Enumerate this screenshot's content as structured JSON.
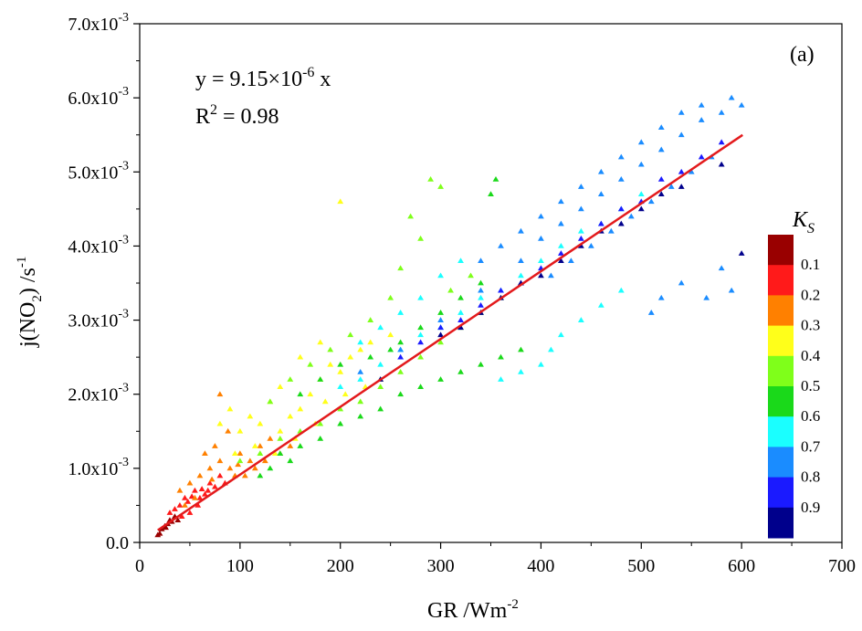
{
  "chart_data": {
    "type": "scatter",
    "panel_label": "(a)",
    "xlabel": "GR /Wm",
    "xlabel_sup": "-2",
    "ylabel": {
      "main": "j(NO",
      "sub": "2",
      "after": ") /s",
      "sup": "-1"
    },
    "xlim": [
      0,
      700
    ],
    "ylim": [
      0,
      0.007
    ],
    "xticks": [
      "0",
      "100",
      "200",
      "300",
      "400",
      "500",
      "600",
      "700"
    ],
    "yticks": [
      {
        "mant": "0.0",
        "exp": ""
      },
      {
        "mant": "1.0x10",
        "exp": "-3"
      },
      {
        "mant": "2.0x10",
        "exp": "-3"
      },
      {
        "mant": "3.0x10",
        "exp": "-3"
      },
      {
        "mant": "4.0x10",
        "exp": "-3"
      },
      {
        "mant": "5.0x10",
        "exp": "-3"
      },
      {
        "mant": "6.0x10",
        "exp": "-3"
      },
      {
        "mant": "7.0x10",
        "exp": "-3"
      }
    ],
    "equation": {
      "lhs": "y = 9.15×10",
      "exp": "-6",
      "rhs": " x"
    },
    "r2": {
      "lhs": "R",
      "exp": "2",
      "rhs": " = 0.98"
    },
    "fit": {
      "slope": 9.15e-06,
      "x_range": [
        18,
        601
      ],
      "color": "#e31a1c"
    },
    "marker": "triangle",
    "colorbar": {
      "title": "K",
      "title_sub": "S",
      "labels": [
        "0.1",
        "0.2",
        "0.3",
        "0.4",
        "0.5",
        "0.6",
        "0.7",
        "0.8",
        "0.9"
      ],
      "colors": [
        "#990000",
        "#ff1a1a",
        "#ff8000",
        "#ffff1a",
        "#7fff1a",
        "#1ad91a",
        "#1affff",
        "#1a8cff",
        "#1a1aff",
        "#00008c"
      ]
    },
    "series_groups": [
      {
        "ks_band": "0.0-0.1",
        "color": "#990000",
        "points": [
          [
            18,
            0.0001
          ],
          [
            22,
            0.00018
          ],
          [
            25,
            0.00022
          ],
          [
            28,
            0.00025
          ],
          [
            30,
            0.0003
          ],
          [
            32,
            0.00028
          ],
          [
            35,
            0.00035
          ],
          [
            38,
            0.0003
          ],
          [
            20,
            0.00012
          ],
          [
            26,
            0.0002
          ]
        ]
      },
      {
        "ks_band": "0.1-0.2",
        "color": "#ff1a1a",
        "points": [
          [
            35,
            0.00045
          ],
          [
            40,
            0.0005
          ],
          [
            45,
            0.0006
          ],
          [
            50,
            0.0004
          ],
          [
            55,
            0.0007
          ],
          [
            60,
            0.0006
          ],
          [
            65,
            0.00065
          ],
          [
            70,
            0.0008
          ],
          [
            75,
            0.00075
          ],
          [
            80,
            0.0009
          ],
          [
            42,
            0.00035
          ],
          [
            48,
            0.00055
          ],
          [
            58,
            0.0005
          ],
          [
            68,
            0.0007
          ],
          [
            85,
            0.0008
          ],
          [
            30,
            0.0004
          ],
          [
            52,
            0.00062
          ],
          [
            62,
            0.00072
          ]
        ]
      },
      {
        "ks_band": "0.2-0.3",
        "color": "#ff8000",
        "points": [
          [
            40,
            0.0007
          ],
          [
            50,
            0.0008
          ],
          [
            60,
            0.0009
          ],
          [
            70,
            0.001
          ],
          [
            80,
            0.0011
          ],
          [
            90,
            0.001
          ],
          [
            100,
            0.0012
          ],
          [
            110,
            0.0011
          ],
          [
            120,
            0.0013
          ],
          [
            130,
            0.0014
          ],
          [
            80,
            0.002
          ],
          [
            55,
            0.0006
          ],
          [
            65,
            0.0012
          ],
          [
            75,
            0.0013
          ],
          [
            95,
            0.0009
          ],
          [
            105,
            0.0009
          ],
          [
            115,
            0.001
          ],
          [
            125,
            0.0011
          ],
          [
            140,
            0.0012
          ],
          [
            150,
            0.0013
          ],
          [
            88,
            0.0015
          ],
          [
            45,
            0.0005
          ],
          [
            72,
            0.00085
          ],
          [
            98,
            0.00105
          ]
        ]
      },
      {
        "ks_band": "0.3-0.4",
        "color": "#ffff1a",
        "points": [
          [
            80,
            0.0016
          ],
          [
            90,
            0.0018
          ],
          [
            100,
            0.0015
          ],
          [
            110,
            0.0017
          ],
          [
            120,
            0.0016
          ],
          [
            130,
            0.0019
          ],
          [
            140,
            0.0015
          ],
          [
            150,
            0.0017
          ],
          [
            160,
            0.0018
          ],
          [
            170,
            0.002
          ],
          [
            180,
            0.0022
          ],
          [
            190,
            0.0024
          ],
          [
            200,
            0.0023
          ],
          [
            210,
            0.0025
          ],
          [
            220,
            0.0026
          ],
          [
            230,
            0.0027
          ],
          [
            240,
            0.0022
          ],
          [
            250,
            0.0028
          ],
          [
            200,
            0.0046
          ],
          [
            180,
            0.0027
          ],
          [
            160,
            0.0025
          ],
          [
            140,
            0.0021
          ],
          [
            95,
            0.0012
          ],
          [
            115,
            0.0013
          ],
          [
            135,
            0.0012
          ],
          [
            155,
            0.0014
          ],
          [
            175,
            0.0016
          ],
          [
            185,
            0.0019
          ],
          [
            205,
            0.002
          ],
          [
            225,
            0.0021
          ]
        ]
      },
      {
        "ks_band": "0.4-0.5",
        "color": "#7fff1a",
        "points": [
          [
            100,
            0.0011
          ],
          [
            120,
            0.0012
          ],
          [
            140,
            0.0014
          ],
          [
            160,
            0.0015
          ],
          [
            180,
            0.0016
          ],
          [
            200,
            0.0018
          ],
          [
            220,
            0.0019
          ],
          [
            240,
            0.0021
          ],
          [
            260,
            0.0023
          ],
          [
            280,
            0.0025
          ],
          [
            300,
            0.0027
          ],
          [
            320,
            0.0029
          ],
          [
            270,
            0.0044
          ],
          [
            290,
            0.0049
          ],
          [
            300,
            0.0048
          ],
          [
            250,
            0.0033
          ],
          [
            230,
            0.003
          ],
          [
            210,
            0.0028
          ],
          [
            190,
            0.0026
          ],
          [
            170,
            0.0024
          ],
          [
            150,
            0.0022
          ],
          [
            130,
            0.0019
          ],
          [
            260,
            0.0037
          ],
          [
            280,
            0.0041
          ],
          [
            340,
            0.0031
          ],
          [
            360,
            0.0033
          ],
          [
            330,
            0.0036
          ],
          [
            310,
            0.0034
          ]
        ]
      },
      {
        "ks_band": "0.5-0.6",
        "color": "#1ad91a",
        "points": [
          [
            140,
            0.0012
          ],
          [
            160,
            0.0013
          ],
          [
            180,
            0.0014
          ],
          [
            200,
            0.0016
          ],
          [
            220,
            0.0017
          ],
          [
            240,
            0.0018
          ],
          [
            260,
            0.002
          ],
          [
            280,
            0.0021
          ],
          [
            300,
            0.0022
          ],
          [
            320,
            0.0023
          ],
          [
            340,
            0.0024
          ],
          [
            360,
            0.0025
          ],
          [
            380,
            0.0026
          ],
          [
            350,
            0.0047
          ],
          [
            355,
            0.0049
          ],
          [
            260,
            0.0027
          ],
          [
            280,
            0.0029
          ],
          [
            300,
            0.0031
          ],
          [
            320,
            0.0033
          ],
          [
            340,
            0.0035
          ],
          [
            230,
            0.0025
          ],
          [
            250,
            0.0026
          ],
          [
            200,
            0.0024
          ],
          [
            180,
            0.0022
          ],
          [
            160,
            0.002
          ],
          [
            120,
            0.0009
          ],
          [
            130,
            0.001
          ],
          [
            150,
            0.0011
          ]
        ]
      },
      {
        "ks_band": "0.6-0.7",
        "color": "#1affff",
        "points": [
          [
            200,
            0.0021
          ],
          [
            220,
            0.0022
          ],
          [
            240,
            0.0024
          ],
          [
            260,
            0.0026
          ],
          [
            280,
            0.0028
          ],
          [
            300,
            0.0029
          ],
          [
            320,
            0.0031
          ],
          [
            340,
            0.0033
          ],
          [
            360,
            0.0034
          ],
          [
            380,
            0.0036
          ],
          [
            400,
            0.0038
          ],
          [
            420,
            0.004
          ],
          [
            440,
            0.0042
          ],
          [
            460,
            0.0043
          ],
          [
            480,
            0.0045
          ],
          [
            500,
            0.0047
          ],
          [
            400,
            0.0024
          ],
          [
            410,
            0.0026
          ],
          [
            420,
            0.0028
          ],
          [
            380,
            0.0023
          ],
          [
            360,
            0.0022
          ],
          [
            440,
            0.003
          ],
          [
            460,
            0.0032
          ],
          [
            480,
            0.0034
          ],
          [
            300,
            0.0036
          ],
          [
            320,
            0.0038
          ],
          [
            280,
            0.0033
          ],
          [
            260,
            0.0031
          ],
          [
            240,
            0.0029
          ],
          [
            220,
            0.0027
          ]
        ]
      },
      {
        "ks_band": "0.7-0.8",
        "color": "#1a8cff",
        "points": [
          [
            220,
            0.0023
          ],
          [
            260,
            0.0026
          ],
          [
            300,
            0.003
          ],
          [
            340,
            0.0034
          ],
          [
            380,
            0.0038
          ],
          [
            400,
            0.0041
          ],
          [
            420,
            0.0043
          ],
          [
            440,
            0.0045
          ],
          [
            460,
            0.0047
          ],
          [
            480,
            0.0049
          ],
          [
            500,
            0.0051
          ],
          [
            520,
            0.0053
          ],
          [
            540,
            0.0055
          ],
          [
            560,
            0.0057
          ],
          [
            580,
            0.0058
          ],
          [
            590,
            0.006
          ],
          [
            600,
            0.0059
          ],
          [
            570,
            0.0052
          ],
          [
            550,
            0.005
          ],
          [
            530,
            0.0048
          ],
          [
            510,
            0.0046
          ],
          [
            490,
            0.0044
          ],
          [
            470,
            0.0042
          ],
          [
            450,
            0.004
          ],
          [
            430,
            0.0038
          ],
          [
            410,
            0.0036
          ],
          [
            500,
            0.0054
          ],
          [
            520,
            0.0056
          ],
          [
            540,
            0.0058
          ],
          [
            560,
            0.0059
          ],
          [
            480,
            0.0052
          ],
          [
            460,
            0.005
          ],
          [
            440,
            0.0048
          ],
          [
            420,
            0.0046
          ],
          [
            400,
            0.0044
          ],
          [
            380,
            0.0042
          ],
          [
            360,
            0.004
          ],
          [
            340,
            0.0038
          ],
          [
            580,
            0.0037
          ],
          [
            590,
            0.0034
          ],
          [
            565,
            0.0033
          ],
          [
            510,
            0.0031
          ],
          [
            520,
            0.0033
          ],
          [
            540,
            0.0035
          ]
        ]
      },
      {
        "ks_band": "0.8-0.9",
        "color": "#1a1aff",
        "points": [
          [
            280,
            0.0027
          ],
          [
            320,
            0.003
          ],
          [
            360,
            0.0034
          ],
          [
            400,
            0.0037
          ],
          [
            440,
            0.0041
          ],
          [
            480,
            0.0045
          ],
          [
            520,
            0.0049
          ],
          [
            560,
            0.0052
          ],
          [
            500,
            0.0046
          ],
          [
            460,
            0.0043
          ],
          [
            420,
            0.0039
          ],
          [
            380,
            0.0035
          ],
          [
            340,
            0.0032
          ],
          [
            300,
            0.0029
          ],
          [
            260,
            0.0025
          ],
          [
            540,
            0.005
          ],
          [
            580,
            0.0054
          ]
        ]
      },
      {
        "ks_band": "0.9-1.0",
        "color": "#00008c",
        "points": [
          [
            300,
            0.0028
          ],
          [
            340,
            0.0031
          ],
          [
            380,
            0.0035
          ],
          [
            420,
            0.0038
          ],
          [
            460,
            0.0042
          ],
          [
            500,
            0.0045
          ],
          [
            540,
            0.0048
          ],
          [
            580,
            0.0051
          ],
          [
            600,
            0.0039
          ],
          [
            520,
            0.0047
          ],
          [
            480,
            0.0043
          ],
          [
            440,
            0.004
          ],
          [
            400,
            0.0036
          ],
          [
            360,
            0.0033
          ],
          [
            320,
            0.0029
          ],
          [
            240,
            0.0022
          ]
        ]
      }
    ]
  }
}
